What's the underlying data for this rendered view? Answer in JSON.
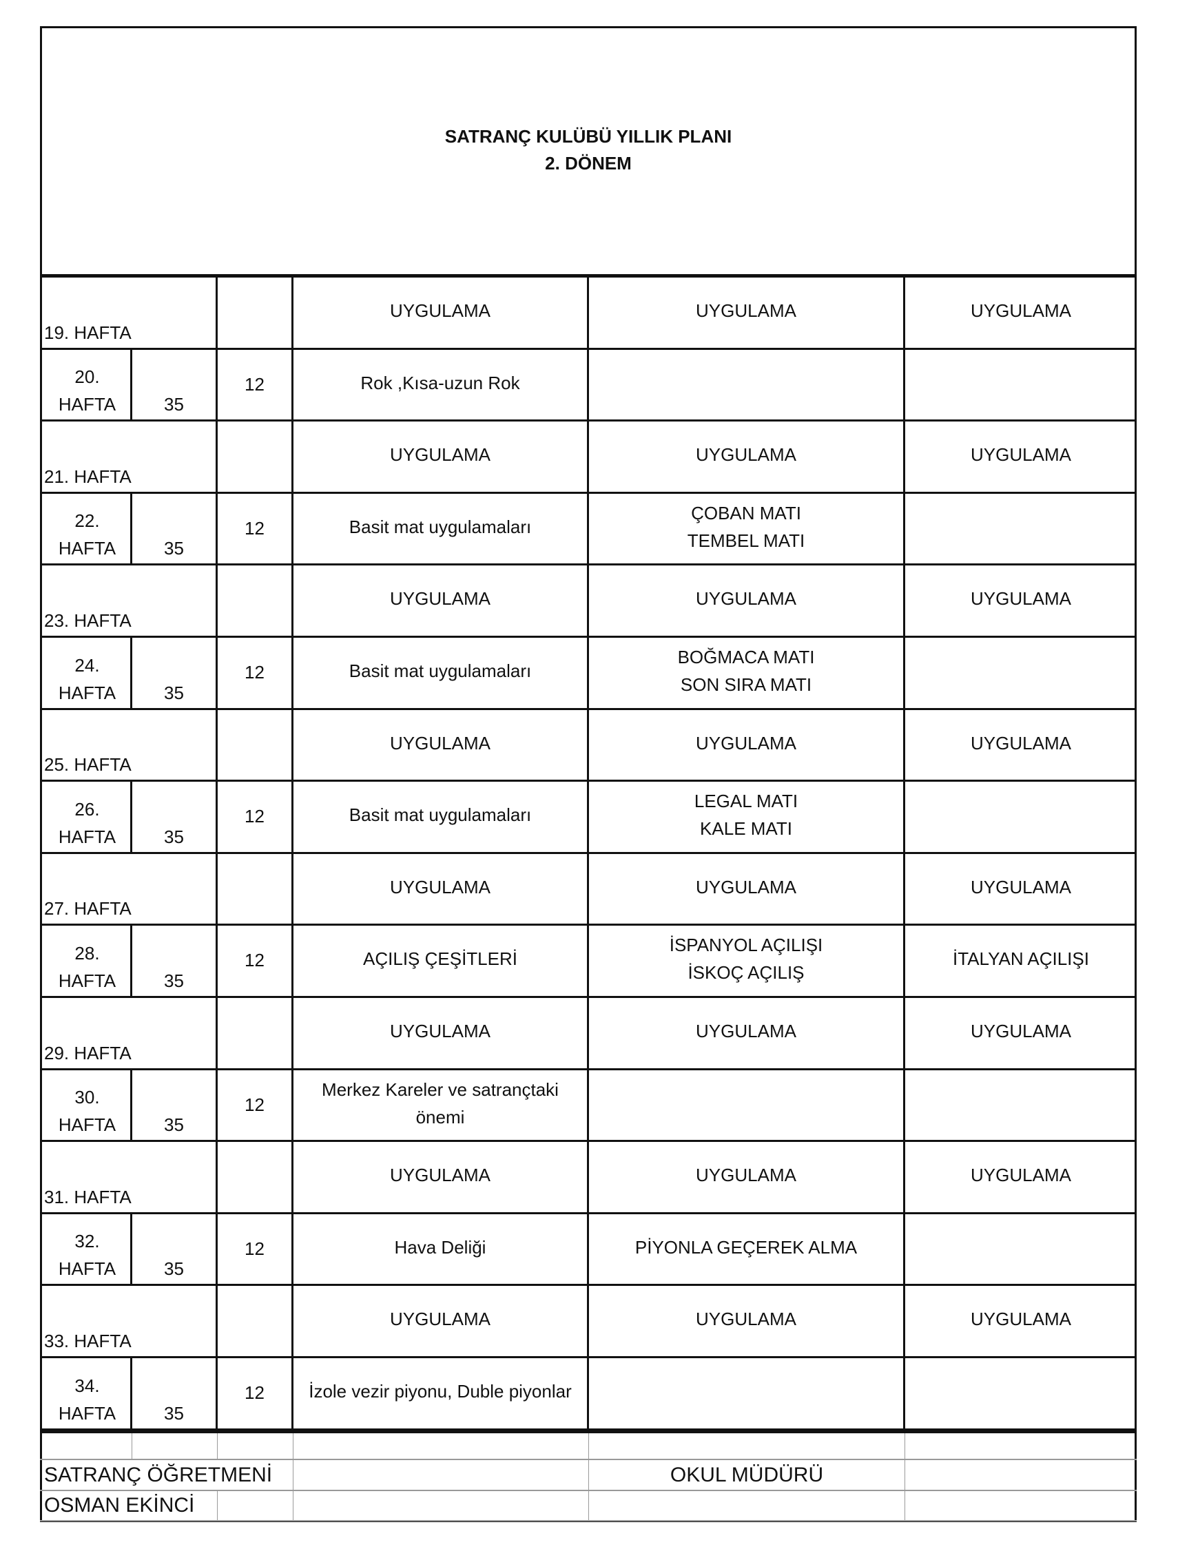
{
  "title": "SATRANÇ KULÜBÜ YILLIK PLANI",
  "subtitle": "2. DÖNEM",
  "rows": [
    {
      "week": "19. HAFTA",
      "hours": "",
      "num": "",
      "topic": [
        "UYGULAMA"
      ],
      "col5": [
        "UYGULAMA"
      ],
      "col6": [
        "UYGULAMA"
      ]
    },
    {
      "week": "20. HAFTA",
      "hours": "35",
      "num": "12",
      "topic": [
        "Rok ,Kısa-uzun Rok"
      ],
      "col5": [],
      "col6": []
    },
    {
      "week": "21. HAFTA",
      "hours": "",
      "num": "",
      "topic": [
        "UYGULAMA"
      ],
      "col5": [
        "UYGULAMA"
      ],
      "col6": [
        "UYGULAMA"
      ]
    },
    {
      "week": "22. HAFTA",
      "hours": "35",
      "num": "12",
      "topic": [
        "Basit mat uygulamaları"
      ],
      "col5": [
        "ÇOBAN MATI",
        "TEMBEL MATI"
      ],
      "col6": []
    },
    {
      "week": "23. HAFTA",
      "hours": "",
      "num": "",
      "topic": [
        "UYGULAMA"
      ],
      "col5": [
        "UYGULAMA"
      ],
      "col6": [
        "UYGULAMA"
      ]
    },
    {
      "week": "24. HAFTA",
      "hours": "35",
      "num": "12",
      "topic": [
        "Basit mat uygulamaları"
      ],
      "col5": [
        "BOĞMACA MATI",
        "SON SIRA MATI"
      ],
      "col6": []
    },
    {
      "week": "25. HAFTA",
      "hours": "",
      "num": "",
      "topic": [
        "UYGULAMA"
      ],
      "col5": [
        "UYGULAMA"
      ],
      "col6": [
        "UYGULAMA"
      ]
    },
    {
      "week": "26. HAFTA",
      "hours": "35",
      "num": "12",
      "topic": [
        "Basit mat uygulamaları"
      ],
      "col5": [
        "LEGAL MATI",
        "KALE MATI"
      ],
      "col6": []
    },
    {
      "week": "27. HAFTA",
      "hours": "",
      "num": "",
      "topic": [
        "UYGULAMA"
      ],
      "col5": [
        "UYGULAMA"
      ],
      "col6": [
        "UYGULAMA"
      ]
    },
    {
      "week": "28. HAFTA",
      "hours": "35",
      "num": "12",
      "topic": [
        "AÇILIŞ ÇEŞİTLERİ"
      ],
      "col5": [
        "İSPANYOL AÇILIŞI",
        "İSKOÇ AÇILIŞ"
      ],
      "col6": [
        "İTALYAN AÇILIŞI"
      ]
    },
    {
      "week": "29. HAFTA",
      "hours": "",
      "num": "",
      "topic": [
        "UYGULAMA"
      ],
      "col5": [
        "UYGULAMA"
      ],
      "col6": [
        "UYGULAMA"
      ]
    },
    {
      "week": "30. HAFTA",
      "hours": "35",
      "num": "12",
      "topic": [
        "Merkez Kareler ve satrançtaki",
        "önemi"
      ],
      "col5": [],
      "col6": []
    },
    {
      "week": "31. HAFTA",
      "hours": "",
      "num": "",
      "topic": [
        "UYGULAMA"
      ],
      "col5": [
        "UYGULAMA"
      ],
      "col6": [
        "UYGULAMA"
      ]
    },
    {
      "week": "32. HAFTA",
      "hours": "35",
      "num": "12",
      "topic": [
        "Hava Deliği"
      ],
      "col5": [
        "PİYONLA GEÇEREK ALMA"
      ],
      "col6": []
    },
    {
      "week": "33. HAFTA",
      "hours": "",
      "num": "",
      "topic": [
        "UYGULAMA"
      ],
      "col5": [
        "UYGULAMA"
      ],
      "col6": [
        "UYGULAMA"
      ]
    },
    {
      "week": "34. HAFTA",
      "hours": "35",
      "num": "12",
      "topic": [
        "İzole vezir piyonu, Duble piyonlar"
      ],
      "col5": [],
      "col6": []
    }
  ],
  "footer": {
    "teacher_title": "SATRANÇ ÖĞRETMENİ",
    "principal_title": "OKUL MÜDÜRÜ",
    "teacher_name": "OSMAN EKİNCİ"
  }
}
